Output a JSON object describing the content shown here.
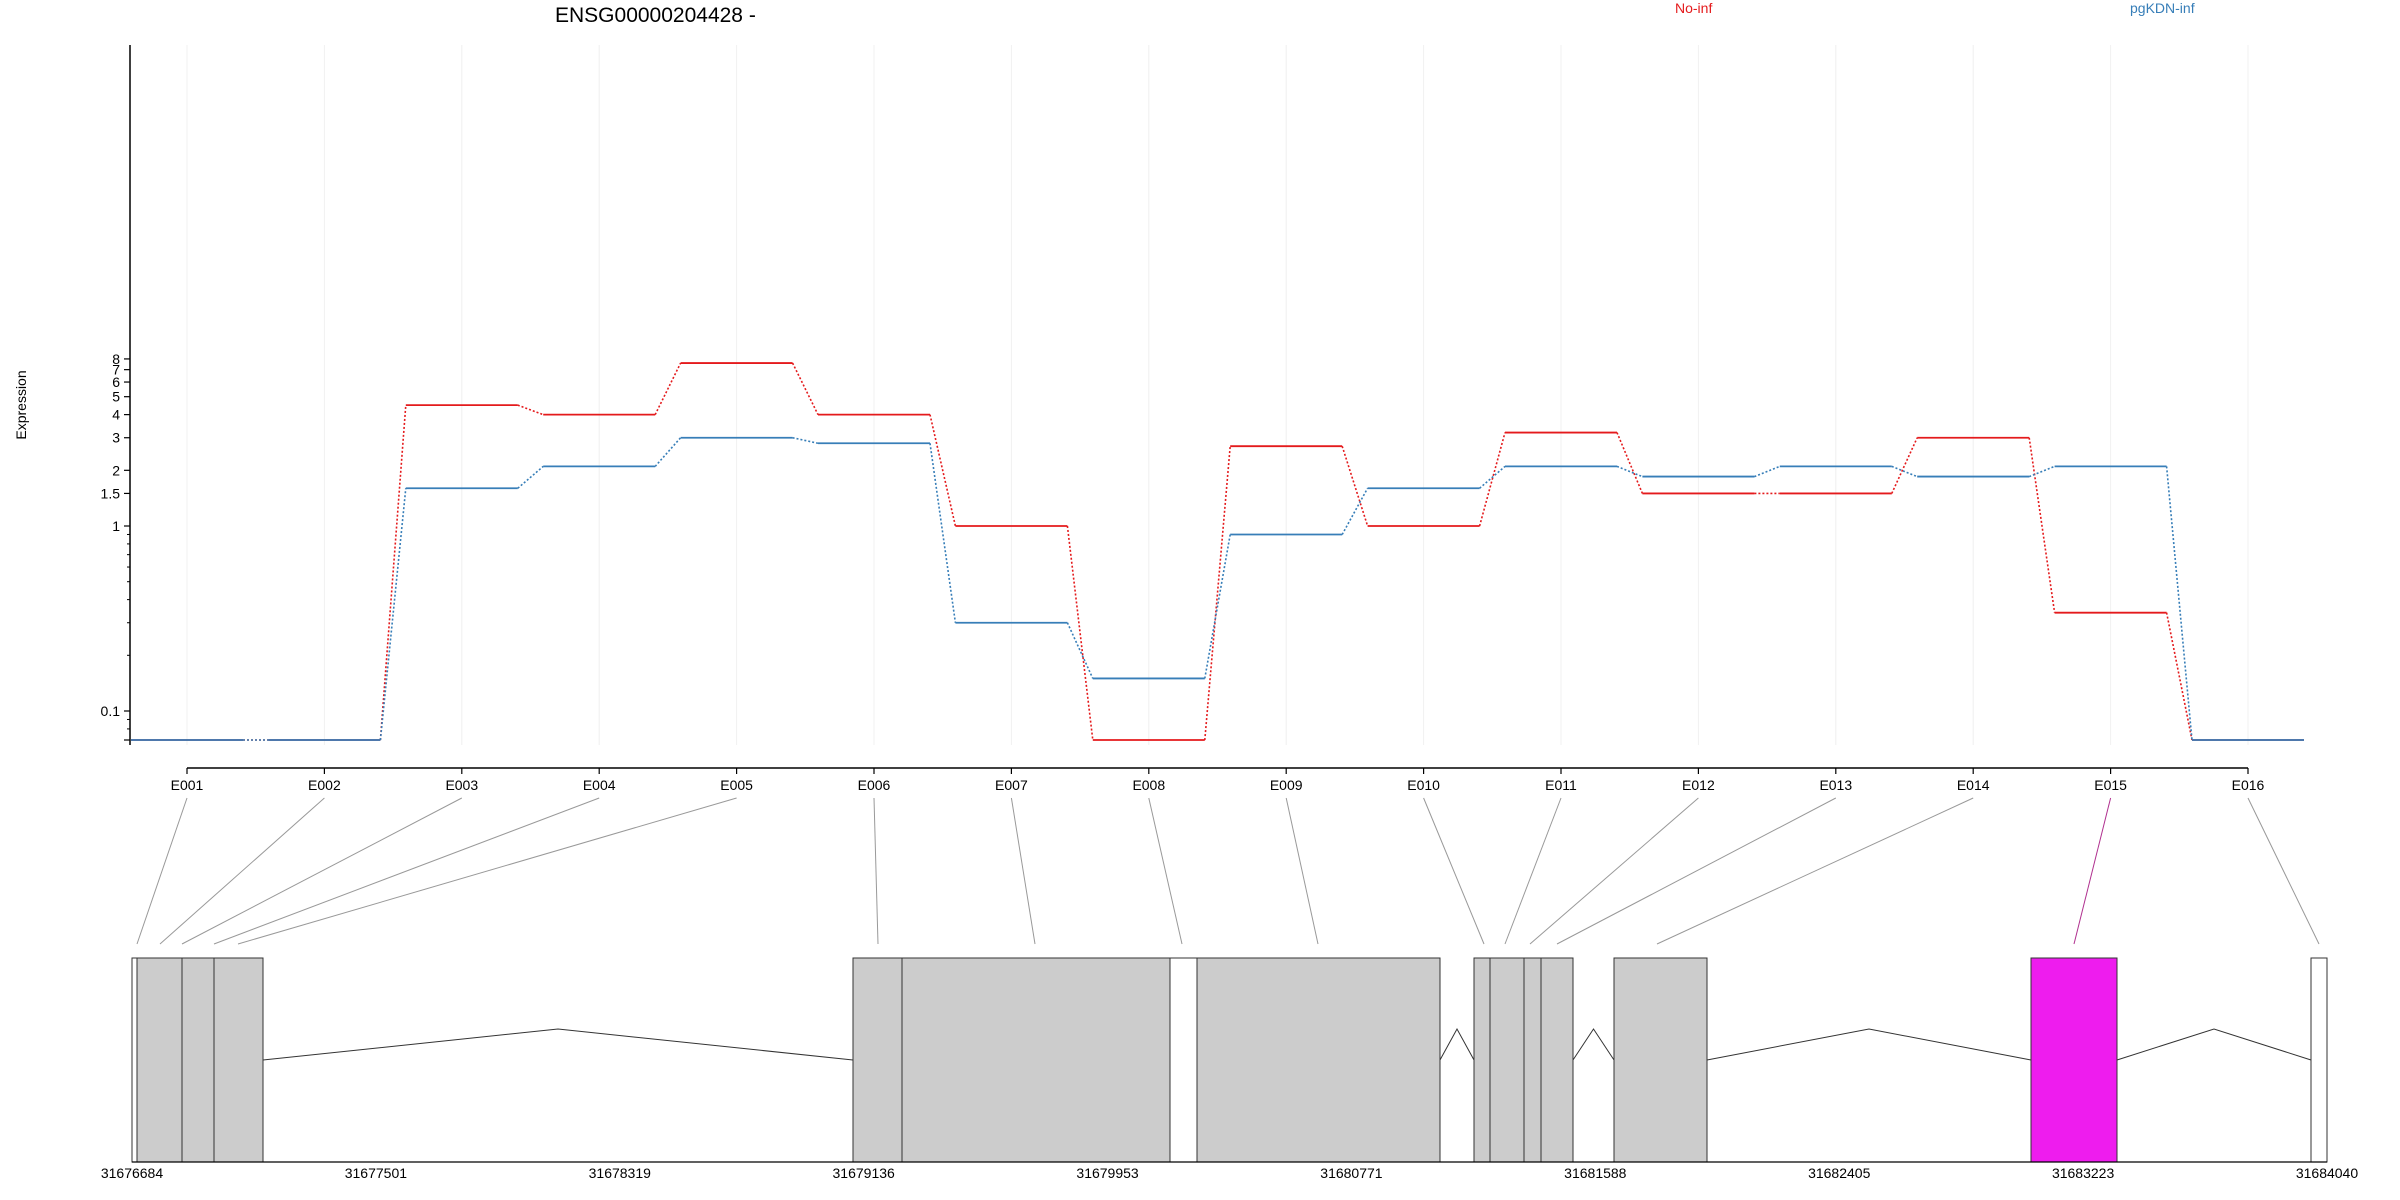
{
  "chart_data": {
    "type": "line",
    "title": "ENSG00000204428 -",
    "ylabel": "Expression",
    "xlabel": "",
    "y_scale": "log",
    "y_ticks": [
      "0.1",
      "1",
      "1.5",
      "2",
      "3",
      "4",
      "5",
      "6",
      "7",
      "8"
    ],
    "y_tick_values": [
      0.1,
      1,
      1.5,
      2,
      3,
      4,
      5,
      6,
      7,
      8
    ],
    "categories": [
      "E001",
      "E002",
      "E003",
      "E004",
      "E005",
      "E006",
      "E007",
      "E008",
      "E009",
      "E010",
      "E011",
      "E012",
      "E013",
      "E014",
      "E015",
      "E016"
    ],
    "series": [
      {
        "name": "No-inf",
        "color": "#e41a1c",
        "values": [
          0.07,
          0.07,
          4.5,
          4.0,
          7.6,
          4.0,
          1.0,
          0.07,
          2.7,
          1.0,
          3.2,
          1.5,
          1.5,
          3.0,
          0.34,
          0.07
        ]
      },
      {
        "name": "pgKDN-inf",
        "color": "#377eb8",
        "values": [
          0.07,
          0.07,
          1.6,
          2.1,
          3.0,
          2.8,
          0.3,
          0.15,
          0.9,
          1.6,
          2.1,
          1.85,
          2.1,
          1.85,
          2.1,
          0.07
        ]
      }
    ],
    "legend_placement": "top",
    "grid": true,
    "gene_model": {
      "coordinate_labels": [
        "31676684",
        "31677501",
        "31678319",
        "31679136",
        "31679953",
        "31680771",
        "31681588",
        "31682405",
        "31683223",
        "31684040"
      ],
      "highlight_color": "#ee1cee",
      "exon_color": "#cccccc",
      "highlighted_exon": "E015"
    }
  }
}
